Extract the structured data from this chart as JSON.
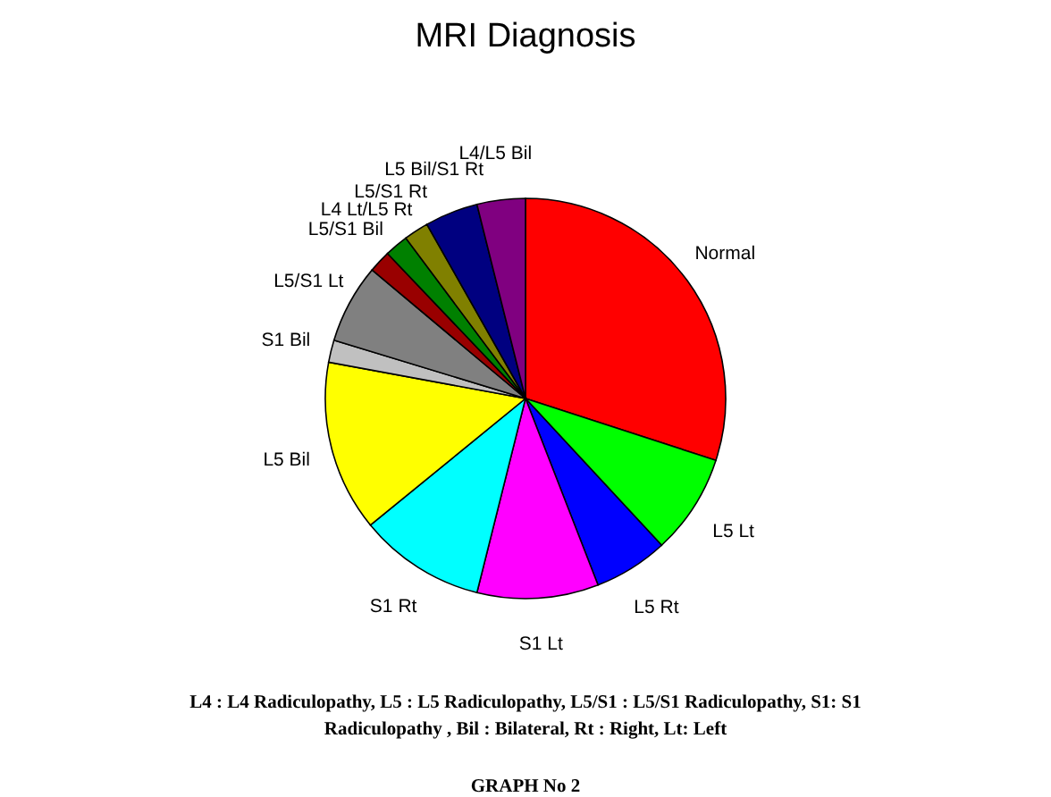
{
  "chart_data": {
    "type": "pie",
    "title": "MRI Diagnosis",
    "categories": [
      "Normal",
      "L5 Lt",
      "L5 Rt",
      "S1 Lt",
      "S1 Rt",
      "L5 Bil",
      "S1 Bil",
      "L5/S1 Lt",
      "L5/S1 Bil",
      "L4 Lt/L5 Rt",
      "L5/S1 Rt",
      "L5 Bil/S1 Rt",
      "L4/L5 Bil"
    ],
    "values": [
      30,
      8.1,
      6,
      9.8,
      10.2,
      13.8,
      1.8,
      6.4,
      1.8,
      1.9,
      2,
      4.3,
      3.9
    ],
    "colors": [
      "#ff0000",
      "#00ff00",
      "#0000ff",
      "#ff00ff",
      "#00ffff",
      "#ffff00",
      "#c0c0c0",
      "#808080",
      "#990000",
      "#008000",
      "#808000",
      "#000080",
      "#800080"
    ],
    "annotations": [
      "L4 : L4 Radiculopathy, L5 : L5 Radiculopathy, L5/S1 : L5/S1 Radiculopathy,  S1: S1",
      "Radiculopathy , Bil : Bilateral, Rt : Right, Lt: Left",
      "GRAPH No 2"
    ],
    "legend": false
  }
}
